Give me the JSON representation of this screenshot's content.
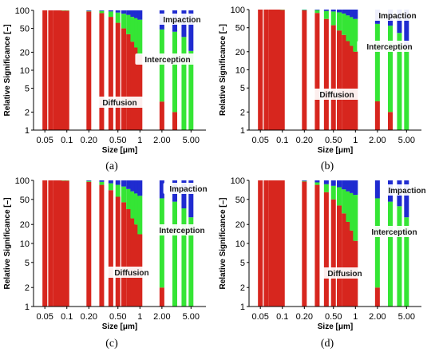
{
  "figure": {
    "colors": {
      "diffusion": "#d7261e",
      "interception": "#35e535",
      "impaction": "#1f2bd0",
      "background": "#ffffff",
      "label_box": "#ffffff"
    }
  },
  "chart_data": [
    {
      "type": "bar",
      "stacked": true,
      "panel_label": "(a)",
      "ylabel": "Relative Significance [–]",
      "xlabel": "Size [μm]",
      "y_scale": "log",
      "ylim": [
        1,
        100
      ],
      "yticks": [
        "1",
        "2",
        "5",
        "10",
        "20",
        "50",
        "100"
      ],
      "x_scale": "log",
      "xlim": [
        0.035,
        8
      ],
      "xticks": [
        "0.05",
        "0.1",
        "0.20",
        "0.50",
        "1",
        "2.00",
        "5.00"
      ],
      "grid": false,
      "legend": "none",
      "annotations": [
        "Impaction",
        "Interception",
        "Diffusion"
      ],
      "x": [
        0.05,
        0.06,
        0.07,
        0.08,
        0.09,
        0.1,
        0.2,
        0.3,
        0.4,
        0.5,
        0.6,
        0.7,
        0.8,
        0.9,
        1.0,
        2.0,
        3.0,
        4.0,
        5.0
      ],
      "series": [
        {
          "name": "Diffusion",
          "values": [
            100,
            100,
            100,
            100,
            99,
            99,
            96,
            90,
            78,
            62,
            50,
            40,
            30,
            24,
            18,
            3,
            2,
            1,
            1
          ]
        },
        {
          "name": "Interception",
          "values": [
            0,
            0,
            0,
            0,
            1,
            1,
            2,
            8,
            18,
            30,
            38,
            44,
            48,
            50,
            52,
            45,
            42,
            35,
            20
          ]
        },
        {
          "name": "Impaction",
          "values": [
            0,
            0,
            0,
            0,
            0,
            0,
            2,
            2,
            4,
            8,
            12,
            16,
            22,
            26,
            30,
            52,
            56,
            64,
            79
          ]
        }
      ]
    },
    {
      "type": "bar",
      "stacked": true,
      "panel_label": "(b)",
      "ylabel": "Relative Significance [–]",
      "xlabel": "Size [μm]",
      "y_scale": "log",
      "ylim": [
        1,
        100
      ],
      "yticks": [
        "1",
        "2",
        "5",
        "10",
        "20",
        "50",
        "100"
      ],
      "x_scale": "log",
      "xlim": [
        0.035,
        8
      ],
      "xticks": [
        "0.05",
        "0.1",
        "0.20",
        "0.50",
        "1",
        "2.00",
        "5.00"
      ],
      "grid": false,
      "legend": "none",
      "annotations": [
        "Impaction",
        "Interception",
        "Diffusion"
      ],
      "x": [
        0.05,
        0.06,
        0.07,
        0.08,
        0.09,
        0.1,
        0.2,
        0.3,
        0.4,
        0.5,
        0.6,
        0.7,
        0.8,
        0.9,
        1.0,
        2.0,
        3.0,
        4.0,
        5.0
      ],
      "series": [
        {
          "name": "Diffusion",
          "values": [
            100,
            100,
            100,
            100,
            100,
            99,
            97,
            88,
            70,
            55,
            45,
            38,
            30,
            25,
            20,
            3,
            2,
            1,
            1
          ]
        },
        {
          "name": "Interception",
          "values": [
            0,
            0,
            0,
            0,
            0,
            1,
            2,
            10,
            25,
            38,
            45,
            48,
            50,
            50,
            50,
            55,
            52,
            40,
            22
          ]
        },
        {
          "name": "Impaction",
          "values": [
            0,
            0,
            0,
            0,
            0,
            0,
            1,
            2,
            5,
            7,
            10,
            14,
            20,
            25,
            30,
            42,
            46,
            59,
            77
          ]
        }
      ]
    },
    {
      "type": "bar",
      "stacked": true,
      "panel_label": "(c)",
      "ylabel": "Relative Significance [–]",
      "xlabel": "Size [μm]",
      "y_scale": "log",
      "ylim": [
        1,
        100
      ],
      "yticks": [
        "1",
        "2",
        "5",
        "10",
        "20",
        "50",
        "100"
      ],
      "x_scale": "log",
      "xlim": [
        0.035,
        8
      ],
      "xticks": [
        "0.05",
        "0.1",
        "0.20",
        "0.50",
        "1",
        "2.00",
        "5.00"
      ],
      "grid": false,
      "legend": "none",
      "annotations": [
        "Impaction",
        "Interception",
        "Diffusion"
      ],
      "x": [
        0.05,
        0.06,
        0.07,
        0.08,
        0.09,
        0.1,
        0.2,
        0.3,
        0.4,
        0.5,
        0.6,
        0.7,
        0.8,
        0.9,
        1.0,
        2.0,
        3.0,
        4.0,
        5.0
      ],
      "series": [
        {
          "name": "Diffusion",
          "values": [
            100,
            100,
            100,
            100,
            99,
            99,
            95,
            85,
            70,
            55,
            45,
            35,
            25,
            20,
            14,
            2,
            1,
            1,
            1
          ]
        },
        {
          "name": "Interception",
          "values": [
            0,
            0,
            0,
            0,
            1,
            1,
            3,
            10,
            20,
            30,
            35,
            38,
            42,
            42,
            43,
            50,
            45,
            35,
            25
          ]
        },
        {
          "name": "Impaction",
          "values": [
            0,
            0,
            0,
            0,
            0,
            0,
            2,
            5,
            10,
            15,
            20,
            27,
            33,
            38,
            43,
            48,
            54,
            64,
            74
          ]
        }
      ]
    },
    {
      "type": "bar",
      "stacked": true,
      "panel_label": "(d)",
      "ylabel": "Relative Significance [–]",
      "xlabel": "Size [μm]",
      "y_scale": "log",
      "ylim": [
        1,
        100
      ],
      "yticks": [
        "1",
        "2",
        "5",
        "10",
        "20",
        "50",
        "100"
      ],
      "x_scale": "log",
      "xlim": [
        0.035,
        8
      ],
      "xticks": [
        "0.05",
        "0.1",
        "0.20",
        "0.50",
        "1",
        "2.00",
        "5.00"
      ],
      "grid": false,
      "legend": "none",
      "annotations": [
        "Impaction",
        "Interception",
        "Diffusion"
      ],
      "x": [
        0.05,
        0.06,
        0.07,
        0.08,
        0.09,
        0.1,
        0.2,
        0.3,
        0.4,
        0.5,
        0.6,
        0.7,
        0.8,
        0.9,
        1.0,
        2.0,
        3.0,
        4.0,
        5.0
      ],
      "series": [
        {
          "name": "Diffusion",
          "values": [
            100,
            100,
            100,
            100,
            100,
            100,
            96,
            85,
            65,
            50,
            40,
            30,
            22,
            16,
            11,
            2,
            1,
            1,
            1
          ]
        },
        {
          "name": "Interception",
          "values": [
            0,
            0,
            0,
            0,
            0,
            0,
            2,
            8,
            22,
            32,
            38,
            42,
            45,
            47,
            48,
            50,
            45,
            38,
            25
          ]
        },
        {
          "name": "Impaction",
          "values": [
            0,
            0,
            0,
            0,
            0,
            0,
            2,
            7,
            13,
            18,
            22,
            28,
            33,
            37,
            41,
            48,
            54,
            61,
            74
          ]
        }
      ]
    }
  ]
}
